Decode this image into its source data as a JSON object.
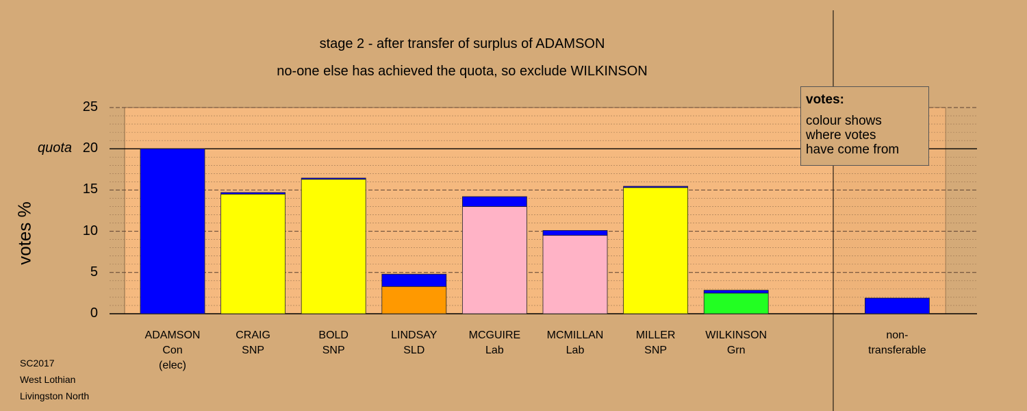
{
  "chart_data": {
    "type": "bar",
    "stacked": true,
    "title": "stage 2 - after transfer of surplus of ADAMSON",
    "subtitle": "no-one else has achieved the quota, so exclude WILKINSON",
    "ylabel": "votes %",
    "ylim": [
      0,
      25
    ],
    "yticks": [
      0,
      5,
      10,
      15,
      20,
      25
    ],
    "quota": {
      "label": "quota",
      "value": 20
    },
    "categories": [
      {
        "name": "ADAMSON",
        "party": "Con",
        "note": "(elec)"
      },
      {
        "name": "CRAIG",
        "party": "SNP",
        "note": ""
      },
      {
        "name": "BOLD",
        "party": "SNP",
        "note": ""
      },
      {
        "name": "LINDSAY",
        "party": "SLD",
        "note": ""
      },
      {
        "name": "MCGUIRE",
        "party": "Lab",
        "note": ""
      },
      {
        "name": "MCMILLAN",
        "party": "Lab",
        "note": ""
      },
      {
        "name": "MILLER",
        "party": "SNP",
        "note": ""
      },
      {
        "name": "WILKINSON",
        "party": "Grn",
        "note": ""
      },
      {
        "name": "",
        "party": "",
        "note": ""
      },
      {
        "name": "non-",
        "party": "transferable",
        "note": ""
      }
    ],
    "bars": [
      [
        {
          "value": 20.0,
          "color": "#0000ff"
        }
      ],
      [
        {
          "value": 14.5,
          "color": "#ffff00"
        },
        {
          "value": 0.2,
          "color": "#0000ff"
        }
      ],
      [
        {
          "value": 16.3,
          "color": "#ffff00"
        },
        {
          "value": 0.15,
          "color": "#0000ff"
        }
      ],
      [
        {
          "value": 3.3,
          "color": "#ff9900"
        },
        {
          "value": 1.5,
          "color": "#0000ff"
        }
      ],
      [
        {
          "value": 13.0,
          "color": "#ffb3c6"
        },
        {
          "value": 1.2,
          "color": "#0000ff"
        }
      ],
      [
        {
          "value": 9.5,
          "color": "#ffb3c6"
        },
        {
          "value": 0.6,
          "color": "#0000ff"
        }
      ],
      [
        {
          "value": 15.3,
          "color": "#ffff00"
        },
        {
          "value": 0.15,
          "color": "#0000ff"
        }
      ],
      [
        {
          "value": 2.5,
          "color": "#22ff22"
        },
        {
          "value": 0.35,
          "color": "#0000ff"
        }
      ],
      [],
      [
        {
          "value": 1.9,
          "color": "#0000ff"
        }
      ]
    ],
    "grid": true
  },
  "legend": {
    "title": "votes:",
    "lines": [
      "colour shows",
      "where votes",
      "have come from"
    ]
  },
  "footer": [
    "SC2017",
    "West Lothian",
    "Livingston North"
  ],
  "colors": {
    "background": "#d4aa78",
    "plot": "#f5b97f",
    "plot_edge": "#b5875a"
  }
}
